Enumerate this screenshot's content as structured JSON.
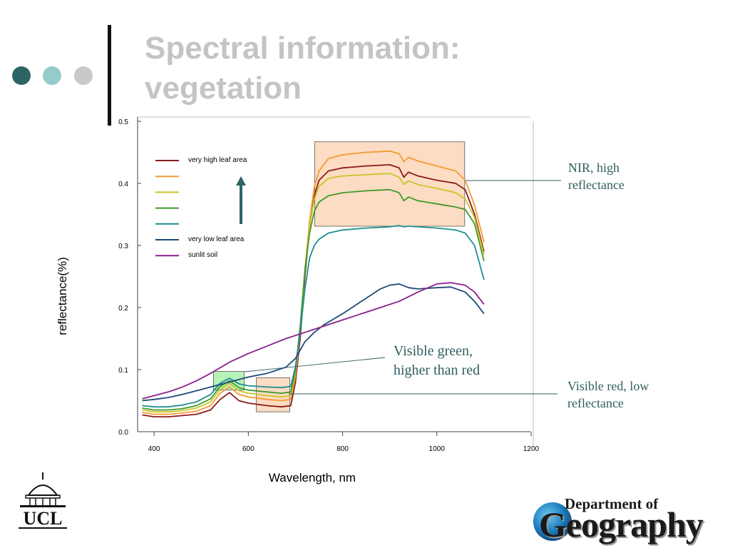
{
  "slide": {
    "title_line1": "Spectral information:",
    "title_line2": "vegetation",
    "dot_colors": [
      "#2e6466",
      "#96cbcc",
      "#c9c9c9"
    ]
  },
  "annotations": {
    "nir_line1": "NIR, high",
    "nir_line2": "reflectance",
    "green_line1": "Visible green,",
    "green_line2": "higher than red",
    "red_line1": "Visible red, low",
    "red_line2": "reflectance"
  },
  "logos": {
    "ucl_text": "UCL",
    "dept_top": "Department of",
    "dept_main": "Geography"
  },
  "chart_data": {
    "type": "line",
    "xlabel": "Wavelength, nm",
    "ylabel": "reflectance(%)",
    "xlim": [
      365,
      1200
    ],
    "ylim": [
      0,
      0.5
    ],
    "xticks": [
      400,
      600,
      800,
      1000,
      1200
    ],
    "yticks": [
      "0.0",
      "0.1",
      "0.2",
      "0.3",
      "0.4",
      "0.5"
    ],
    "legend_position": "top-left",
    "arrow_color": "#2e6466",
    "series": [
      {
        "name": "very high leaf area",
        "color": "#8b1a1a",
        "points": [
          [
            375,
            0.027
          ],
          [
            400,
            0.024
          ],
          [
            430,
            0.024
          ],
          [
            460,
            0.026
          ],
          [
            490,
            0.028
          ],
          [
            520,
            0.035
          ],
          [
            540,
            0.052
          ],
          [
            560,
            0.063
          ],
          [
            580,
            0.05
          ],
          [
            600,
            0.046
          ],
          [
            640,
            0.042
          ],
          [
            670,
            0.04
          ],
          [
            690,
            0.042
          ],
          [
            700,
            0.08
          ],
          [
            710,
            0.15
          ],
          [
            720,
            0.25
          ],
          [
            730,
            0.33
          ],
          [
            740,
            0.38
          ],
          [
            750,
            0.405
          ],
          [
            770,
            0.42
          ],
          [
            800,
            0.425
          ],
          [
            850,
            0.428
          ],
          [
            900,
            0.43
          ],
          [
            920,
            0.425
          ],
          [
            930,
            0.41
          ],
          [
            940,
            0.418
          ],
          [
            960,
            0.412
          ],
          [
            1000,
            0.405
          ],
          [
            1040,
            0.4
          ],
          [
            1060,
            0.39
          ],
          [
            1080,
            0.35
          ],
          [
            1100,
            0.29
          ]
        ]
      },
      {
        "name": "",
        "color": "#f39a31",
        "points": [
          [
            375,
            0.031
          ],
          [
            400,
            0.028
          ],
          [
            430,
            0.028
          ],
          [
            460,
            0.03
          ],
          [
            490,
            0.033
          ],
          [
            520,
            0.042
          ],
          [
            540,
            0.062
          ],
          [
            560,
            0.072
          ],
          [
            580,
            0.06
          ],
          [
            600,
            0.056
          ],
          [
            640,
            0.052
          ],
          [
            670,
            0.05
          ],
          [
            690,
            0.052
          ],
          [
            700,
            0.09
          ],
          [
            710,
            0.16
          ],
          [
            720,
            0.26
          ],
          [
            730,
            0.34
          ],
          [
            740,
            0.395
          ],
          [
            750,
            0.42
          ],
          [
            770,
            0.44
          ],
          [
            800,
            0.446
          ],
          [
            850,
            0.45
          ],
          [
            900,
            0.452
          ],
          [
            920,
            0.448
          ],
          [
            930,
            0.435
          ],
          [
            940,
            0.442
          ],
          [
            960,
            0.436
          ],
          [
            1000,
            0.428
          ],
          [
            1040,
            0.42
          ],
          [
            1060,
            0.405
          ],
          [
            1080,
            0.365
          ],
          [
            1100,
            0.305
          ]
        ]
      },
      {
        "name": "",
        "color": "#cbc42a",
        "points": [
          [
            375,
            0.035
          ],
          [
            400,
            0.032
          ],
          [
            430,
            0.032
          ],
          [
            460,
            0.034
          ],
          [
            490,
            0.038
          ],
          [
            520,
            0.048
          ],
          [
            540,
            0.068
          ],
          [
            560,
            0.078
          ],
          [
            580,
            0.066
          ],
          [
            600,
            0.062
          ],
          [
            640,
            0.058
          ],
          [
            670,
            0.056
          ],
          [
            690,
            0.058
          ],
          [
            700,
            0.095
          ],
          [
            710,
            0.165
          ],
          [
            720,
            0.26
          ],
          [
            730,
            0.33
          ],
          [
            740,
            0.375
          ],
          [
            750,
            0.395
          ],
          [
            770,
            0.408
          ],
          [
            800,
            0.412
          ],
          [
            850,
            0.414
          ],
          [
            900,
            0.416
          ],
          [
            920,
            0.41
          ],
          [
            930,
            0.398
          ],
          [
            940,
            0.404
          ],
          [
            960,
            0.398
          ],
          [
            1000,
            0.392
          ],
          [
            1040,
            0.385
          ],
          [
            1060,
            0.375
          ],
          [
            1080,
            0.345
          ],
          [
            1100,
            0.285
          ]
        ]
      },
      {
        "name": "",
        "color": "#3f9a2a",
        "points": [
          [
            375,
            0.038
          ],
          [
            400,
            0.035
          ],
          [
            430,
            0.035
          ],
          [
            460,
            0.037
          ],
          [
            490,
            0.042
          ],
          [
            520,
            0.053
          ],
          [
            540,
            0.073
          ],
          [
            560,
            0.082
          ],
          [
            580,
            0.071
          ],
          [
            600,
            0.067
          ],
          [
            640,
            0.064
          ],
          [
            670,
            0.062
          ],
          [
            690,
            0.064
          ],
          [
            700,
            0.1
          ],
          [
            710,
            0.17
          ],
          [
            720,
            0.26
          ],
          [
            730,
            0.32
          ],
          [
            740,
            0.355
          ],
          [
            750,
            0.37
          ],
          [
            770,
            0.38
          ],
          [
            800,
            0.385
          ],
          [
            850,
            0.388
          ],
          [
            900,
            0.39
          ],
          [
            920,
            0.385
          ],
          [
            930,
            0.372
          ],
          [
            940,
            0.378
          ],
          [
            960,
            0.372
          ],
          [
            1000,
            0.367
          ],
          [
            1040,
            0.362
          ],
          [
            1060,
            0.358
          ],
          [
            1080,
            0.335
          ],
          [
            1100,
            0.275
          ]
        ]
      },
      {
        "name": "",
        "color": "#1e8e8e",
        "points": [
          [
            375,
            0.042
          ],
          [
            400,
            0.04
          ],
          [
            430,
            0.04
          ],
          [
            460,
            0.043
          ],
          [
            490,
            0.048
          ],
          [
            520,
            0.06
          ],
          [
            540,
            0.078
          ],
          [
            560,
            0.086
          ],
          [
            580,
            0.077
          ],
          [
            600,
            0.074
          ],
          [
            640,
            0.072
          ],
          [
            670,
            0.071
          ],
          [
            690,
            0.073
          ],
          [
            700,
            0.105
          ],
          [
            710,
            0.16
          ],
          [
            720,
            0.23
          ],
          [
            730,
            0.28
          ],
          [
            740,
            0.3
          ],
          [
            750,
            0.31
          ],
          [
            770,
            0.32
          ],
          [
            800,
            0.325
          ],
          [
            850,
            0.328
          ],
          [
            900,
            0.33
          ],
          [
            920,
            0.332
          ],
          [
            930,
            0.33
          ],
          [
            940,
            0.331
          ],
          [
            960,
            0.33
          ],
          [
            1000,
            0.328
          ],
          [
            1040,
            0.325
          ],
          [
            1060,
            0.32
          ],
          [
            1080,
            0.3
          ],
          [
            1100,
            0.245
          ]
        ]
      },
      {
        "name": "very low leaf area",
        "color": "#1d4b78",
        "points": [
          [
            375,
            0.05
          ],
          [
            400,
            0.052
          ],
          [
            430,
            0.055
          ],
          [
            460,
            0.06
          ],
          [
            490,
            0.066
          ],
          [
            520,
            0.072
          ],
          [
            560,
            0.08
          ],
          [
            600,
            0.088
          ],
          [
            640,
            0.094
          ],
          [
            680,
            0.104
          ],
          [
            700,
            0.118
          ],
          [
            720,
            0.145
          ],
          [
            740,
            0.16
          ],
          [
            760,
            0.172
          ],
          [
            800,
            0.19
          ],
          [
            840,
            0.21
          ],
          [
            880,
            0.23
          ],
          [
            900,
            0.236
          ],
          [
            920,
            0.238
          ],
          [
            940,
            0.232
          ],
          [
            960,
            0.23
          ],
          [
            1000,
            0.232
          ],
          [
            1030,
            0.233
          ],
          [
            1060,
            0.225
          ],
          [
            1080,
            0.21
          ],
          [
            1100,
            0.19
          ]
        ]
      },
      {
        "name": "sunlit soil",
        "color": "#8a1f8c",
        "points": [
          [
            375,
            0.053
          ],
          [
            400,
            0.058
          ],
          [
            430,
            0.064
          ],
          [
            460,
            0.072
          ],
          [
            490,
            0.082
          ],
          [
            520,
            0.094
          ],
          [
            560,
            0.112
          ],
          [
            600,
            0.126
          ],
          [
            640,
            0.138
          ],
          [
            680,
            0.15
          ],
          [
            720,
            0.16
          ],
          [
            760,
            0.17
          ],
          [
            800,
            0.18
          ],
          [
            840,
            0.19
          ],
          [
            880,
            0.2
          ],
          [
            920,
            0.21
          ],
          [
            960,
            0.225
          ],
          [
            1000,
            0.238
          ],
          [
            1030,
            0.24
          ],
          [
            1060,
            0.236
          ],
          [
            1080,
            0.225
          ],
          [
            1100,
            0.205
          ]
        ]
      }
    ],
    "highlight_boxes": [
      {
        "region": "nir",
        "x": [
          741,
          1059
        ],
        "y": [
          0.331,
          0.467
        ],
        "fill": "#fcdcc2"
      },
      {
        "region": "green",
        "x": [
          526,
          591
        ],
        "y": [
          0.067,
          0.097
        ],
        "fill": "#b8f2b8"
      },
      {
        "region": "red",
        "x": [
          617,
          688
        ],
        "y": [
          0.032,
          0.087
        ],
        "fill": "#fcdcc2"
      }
    ]
  }
}
